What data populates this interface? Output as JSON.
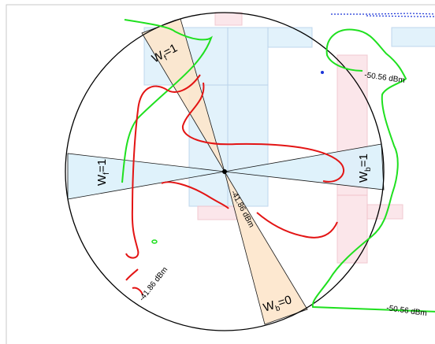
{
  "labels": {
    "wf_top": "W",
    "wf_top_sub": "f",
    "wf_top_val": "=1",
    "wf_left": "W",
    "wf_left_sub": "f",
    "wf_left_val": "=1",
    "wb_right": "W",
    "wb_right_sub": "b",
    "wb_right_val": "=1",
    "wb_bottom": "W",
    "wb_bottom_sub": "b",
    "wb_bottom_val": "=0",
    "contour_top_right": "-50.56 dBm",
    "contour_bottom_right": "-50.56 dBm",
    "contour_center": "-41.86 dBm",
    "contour_bottom_left": "-41.86 dBm"
  },
  "colors": {
    "green_contour": "#1fe01f",
    "red_contour": "#e31414",
    "blue_contour": "#1a34d8",
    "orange_sector": "#fde6cc",
    "blue_sector": "#dcf1fb",
    "pink_block": "#fbe4e8",
    "blue_block": "#dff1fb"
  }
}
